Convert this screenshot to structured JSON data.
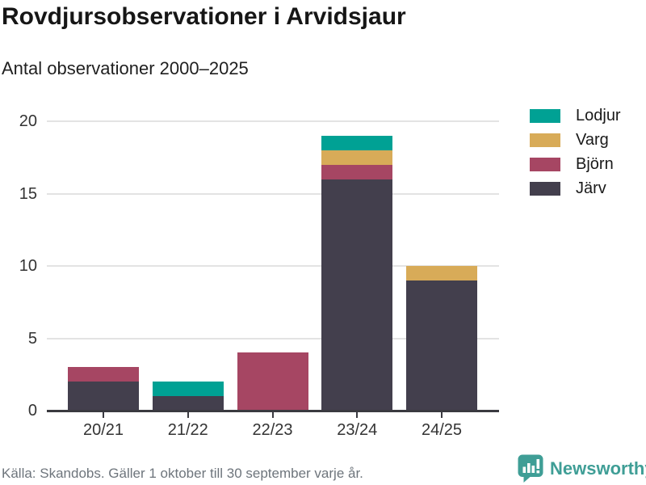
{
  "header": {
    "title": "Rovdjursobservationer i Arvidsjaur",
    "subtitle": "Antal observationer 2000–2025"
  },
  "chart_data": {
    "type": "bar",
    "stacked": true,
    "title": "Rovdjursobservationer i Arvidsjaur",
    "subtitle": "Antal observationer 2000–2025",
    "categories": [
      "20/21",
      "21/22",
      "22/23",
      "23/24",
      "24/25"
    ],
    "series": [
      {
        "name": "Järv",
        "color": "#433f4d",
        "values": [
          2,
          1,
          0,
          16,
          9
        ]
      },
      {
        "name": "Björn",
        "color": "#a64663",
        "values": [
          1,
          0,
          4,
          1,
          0
        ]
      },
      {
        "name": "Varg",
        "color": "#d8ab58",
        "values": [
          0,
          0,
          0,
          1,
          1
        ]
      },
      {
        "name": "Lodjur",
        "color": "#00a194",
        "values": [
          0,
          1,
          0,
          1,
          0
        ]
      }
    ],
    "totals": [
      3,
      2,
      4,
      19,
      10
    ],
    "legend_order": [
      "Lodjur",
      "Varg",
      "Björn",
      "Järv"
    ],
    "legend_position": "right-top",
    "y_ticks": [
      0,
      5,
      10,
      15,
      20
    ],
    "ylim": [
      0,
      20
    ],
    "xlabel": "",
    "ylabel": "",
    "grid": "horizontal"
  },
  "colors": {
    "grid": "#e3e3e3",
    "axis": "#3a3a40",
    "brand": "#3f9e96"
  },
  "footer": {
    "source": "Källa: Skandobs. Gäller 1 oktober till 30 september varje år.",
    "brand": "Newsworthy"
  }
}
